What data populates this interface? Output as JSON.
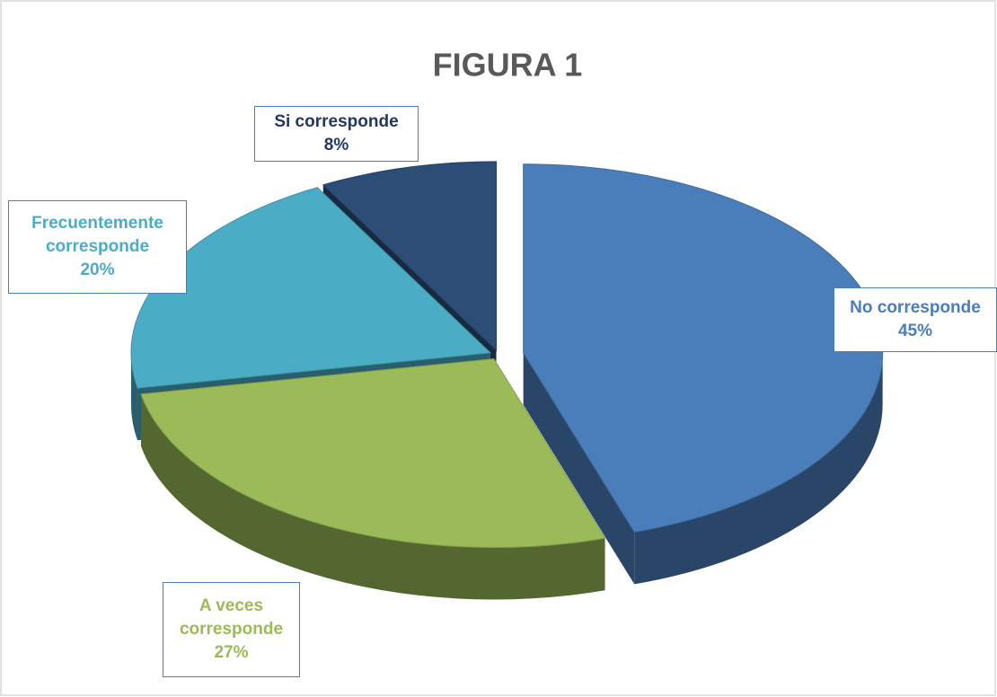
{
  "chart_data": {
    "type": "pie",
    "title": "FIGURA 1",
    "categories": [
      "No corresponde",
      "A veces corresponde",
      "Frecuentemente corresponde",
      "Si corresponde"
    ],
    "values": [
      45,
      27,
      20,
      8
    ],
    "value_labels": [
      "45%",
      "27%",
      "20%",
      "8%"
    ],
    "colors": [
      "#4a7ebb",
      "#9bbb59",
      "#4bacc6",
      "#2c4d75"
    ]
  }
}
